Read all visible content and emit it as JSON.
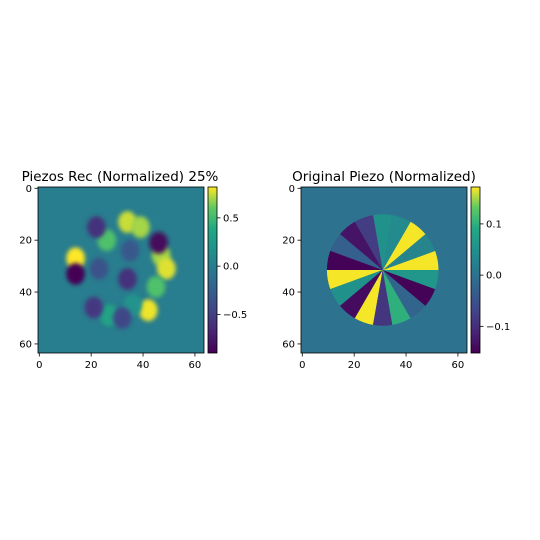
{
  "chart_data": [
    {
      "type": "heatmap",
      "title": "Piezos Rec (Normalized) 25%",
      "grid": false,
      "xlim": [
        0,
        63
      ],
      "ylim": [
        63,
        0
      ],
      "x_ticks": [
        0,
        20,
        40,
        60
      ],
      "y_ticks": [
        0,
        20,
        40,
        60
      ],
      "colormap": "viridis",
      "background_value": 0.0,
      "colorbar": {
        "range": [
          -0.9,
          0.82
        ],
        "ticks": [
          0.5,
          0.0,
          -0.5
        ],
        "tick_labels": [
          "0.5",
          "0.0",
          "−0.5"
        ]
      },
      "features": [
        {
          "x": 34,
          "y": 13,
          "value": 0.75
        },
        {
          "x": 39,
          "y": 15,
          "value": 0.7
        },
        {
          "x": 47,
          "y": 26,
          "value": 0.7
        },
        {
          "x": 49,
          "y": 31,
          "value": 0.78
        },
        {
          "x": 45,
          "y": 38,
          "value": 0.55
        },
        {
          "x": 42,
          "y": 47,
          "value": 0.8
        },
        {
          "x": 26,
          "y": 20,
          "value": 0.55
        },
        {
          "x": 14,
          "y": 27,
          "value": 0.82
        },
        {
          "x": 27,
          "y": 49,
          "value": 0.35
        },
        {
          "x": 36,
          "y": 45,
          "value": 0.2
        },
        {
          "x": 46,
          "y": 21,
          "value": -0.85
        },
        {
          "x": 22,
          "y": 15,
          "value": -0.6
        },
        {
          "x": 14,
          "y": 33,
          "value": -0.9
        },
        {
          "x": 21,
          "y": 46,
          "value": -0.55
        },
        {
          "x": 34,
          "y": 35,
          "value": -0.6
        },
        {
          "x": 32,
          "y": 50,
          "value": -0.45
        },
        {
          "x": 23,
          "y": 31,
          "value": -0.35
        },
        {
          "x": 35,
          "y": 24,
          "value": -0.3
        }
      ]
    },
    {
      "type": "heatmap",
      "title": "Original Piezo (Normalized)",
      "grid": false,
      "xlim": [
        0,
        63
      ],
      "ylim": [
        63,
        0
      ],
      "x_ticks": [
        0,
        20,
        40,
        60
      ],
      "y_ticks": [
        0,
        20,
        40,
        60
      ],
      "colormap": "viridis",
      "background_value": 0.0,
      "colorbar": {
        "range": [
          -0.152,
          0.172
        ],
        "ticks": [
          0.1,
          0.0,
          -0.1
        ],
        "tick_labels": [
          "0.1",
          "0.0",
          "−0.1"
        ]
      },
      "disk": {
        "center": [
          31.5,
          32
        ],
        "radius": 21.5
      },
      "sectors": [
        {
          "start_deg": 0,
          "end_deg": 20,
          "value": 0.17
        },
        {
          "start_deg": 20,
          "end_deg": 40,
          "value": 0.03
        },
        {
          "start_deg": 40,
          "end_deg": 60,
          "value": 0.17
        },
        {
          "start_deg": 60,
          "end_deg": 80,
          "value": 0.04
        },
        {
          "start_deg": 80,
          "end_deg": 100,
          "value": 0.05
        },
        {
          "start_deg": 100,
          "end_deg": 120,
          "value": -0.08
        },
        {
          "start_deg": 120,
          "end_deg": 140,
          "value": -0.13
        },
        {
          "start_deg": 140,
          "end_deg": 160,
          "value": -0.03
        },
        {
          "start_deg": 160,
          "end_deg": 180,
          "value": -0.15
        },
        {
          "start_deg": 180,
          "end_deg": 200,
          "value": 0.17
        },
        {
          "start_deg": 200,
          "end_deg": 220,
          "value": 0.05
        },
        {
          "start_deg": 220,
          "end_deg": 240,
          "value": -0.14
        },
        {
          "start_deg": 240,
          "end_deg": 260,
          "value": 0.17
        },
        {
          "start_deg": 260,
          "end_deg": 280,
          "value": -0.09
        },
        {
          "start_deg": 280,
          "end_deg": 300,
          "value": 0.1
        },
        {
          "start_deg": 300,
          "end_deg": 320,
          "value": -0.02
        },
        {
          "start_deg": 320,
          "end_deg": 340,
          "value": -0.15
        },
        {
          "start_deg": 340,
          "end_deg": 360,
          "value": 0.06
        }
      ]
    }
  ]
}
